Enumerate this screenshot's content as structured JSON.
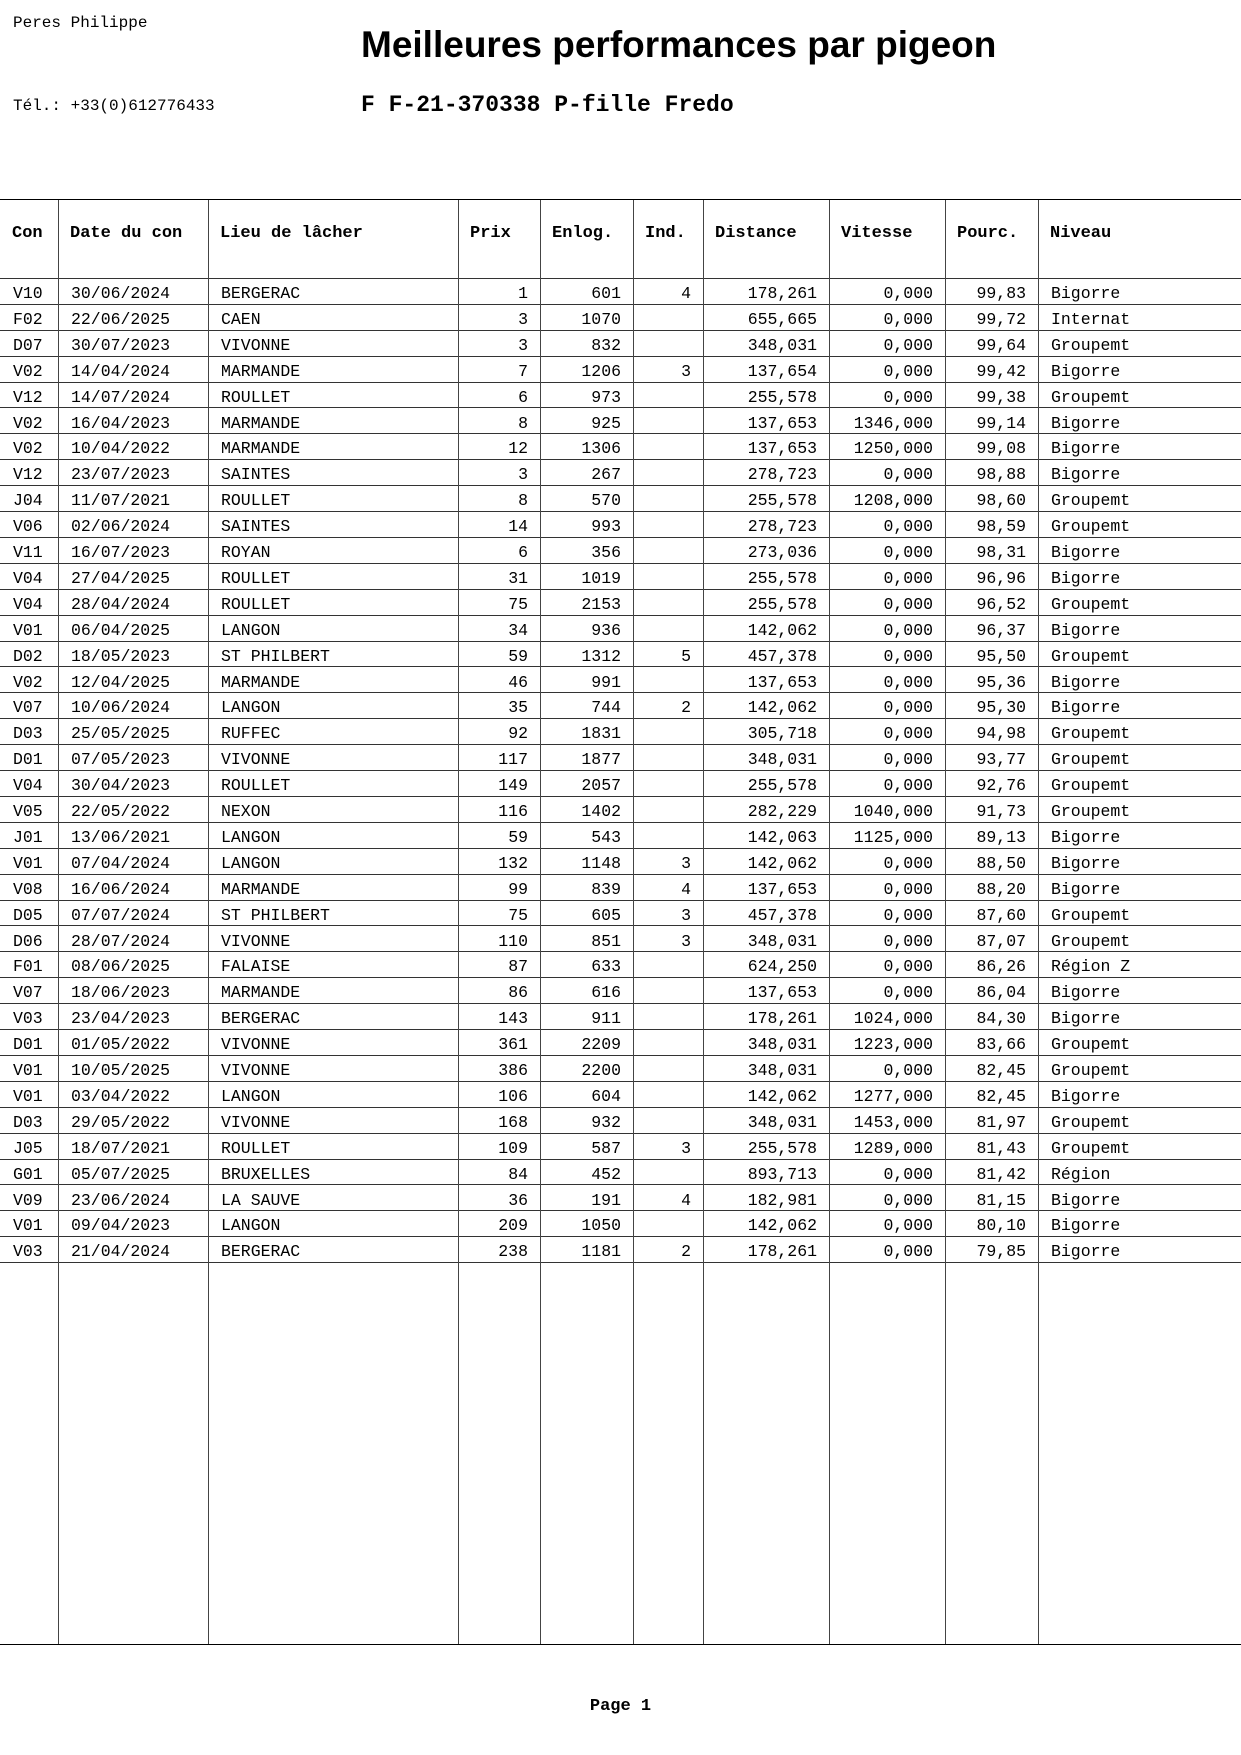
{
  "header": {
    "owner": "Peres Philippe",
    "phone": "Tél.: +33(0)612776433",
    "title": "Meilleures performances par pigeon",
    "pigeon": "F F-21-370338 P-fille Fredo"
  },
  "table": {
    "columns": [
      "Con",
      "Date du con",
      "Lieu de lâcher",
      "Prix",
      "Enlog.",
      "Ind.",
      "Distance",
      "Vitesse",
      "Pourc.",
      "Niveau"
    ],
    "rows": [
      [
        "V10",
        "30/06/2024",
        "BERGERAC",
        "1",
        "601",
        "4",
        "178,261",
        "0,000",
        "99,83",
        "Bigorre"
      ],
      [
        "F02",
        "22/06/2025",
        "CAEN",
        "3",
        "1070",
        "",
        "655,665",
        "0,000",
        "99,72",
        "Internat"
      ],
      [
        "D07",
        "30/07/2023",
        "VIVONNE",
        "3",
        "832",
        "",
        "348,031",
        "0,000",
        "99,64",
        "Groupemt"
      ],
      [
        "V02",
        "14/04/2024",
        "MARMANDE",
        "7",
        "1206",
        "3",
        "137,654",
        "0,000",
        "99,42",
        "Bigorre"
      ],
      [
        "V12",
        "14/07/2024",
        "ROULLET",
        "6",
        "973",
        "",
        "255,578",
        "0,000",
        "99,38",
        "Groupemt"
      ],
      [
        "V02",
        "16/04/2023",
        "MARMANDE",
        "8",
        "925",
        "",
        "137,653",
        "1346,000",
        "99,14",
        "Bigorre"
      ],
      [
        "V02",
        "10/04/2022",
        "MARMANDE",
        "12",
        "1306",
        "",
        "137,653",
        "1250,000",
        "99,08",
        "Bigorre"
      ],
      [
        "V12",
        "23/07/2023",
        "SAINTES",
        "3",
        "267",
        "",
        "278,723",
        "0,000",
        "98,88",
        "Bigorre"
      ],
      [
        "J04",
        "11/07/2021",
        "ROULLET",
        "8",
        "570",
        "",
        "255,578",
        "1208,000",
        "98,60",
        "Groupemt"
      ],
      [
        "V06",
        "02/06/2024",
        "SAINTES",
        "14",
        "993",
        "",
        "278,723",
        "0,000",
        "98,59",
        "Groupemt"
      ],
      [
        "V11",
        "16/07/2023",
        "ROYAN",
        "6",
        "356",
        "",
        "273,036",
        "0,000",
        "98,31",
        "Bigorre"
      ],
      [
        "V04",
        "27/04/2025",
        "ROULLET",
        "31",
        "1019",
        "",
        "255,578",
        "0,000",
        "96,96",
        "Bigorre"
      ],
      [
        "V04",
        "28/04/2024",
        "ROULLET",
        "75",
        "2153",
        "",
        "255,578",
        "0,000",
        "96,52",
        "Groupemt"
      ],
      [
        "V01",
        "06/04/2025",
        "LANGON",
        "34",
        "936",
        "",
        "142,062",
        "0,000",
        "96,37",
        "Bigorre"
      ],
      [
        "D02",
        "18/05/2023",
        "ST PHILBERT",
        "59",
        "1312",
        "5",
        "457,378",
        "0,000",
        "95,50",
        "Groupemt"
      ],
      [
        "V02",
        "12/04/2025",
        "MARMANDE",
        "46",
        "991",
        "",
        "137,653",
        "0,000",
        "95,36",
        "Bigorre"
      ],
      [
        "V07",
        "10/06/2024",
        "LANGON",
        "35",
        "744",
        "2",
        "142,062",
        "0,000",
        "95,30",
        "Bigorre"
      ],
      [
        "D03",
        "25/05/2025",
        "RUFFEC",
        "92",
        "1831",
        "",
        "305,718",
        "0,000",
        "94,98",
        "Groupemt"
      ],
      [
        "D01",
        "07/05/2023",
        "VIVONNE",
        "117",
        "1877",
        "",
        "348,031",
        "0,000",
        "93,77",
        "Groupemt"
      ],
      [
        "V04",
        "30/04/2023",
        "ROULLET",
        "149",
        "2057",
        "",
        "255,578",
        "0,000",
        "92,76",
        "Groupemt"
      ],
      [
        "V05",
        "22/05/2022",
        "NEXON",
        "116",
        "1402",
        "",
        "282,229",
        "1040,000",
        "91,73",
        "Groupemt"
      ],
      [
        "J01",
        "13/06/2021",
        "LANGON",
        "59",
        "543",
        "",
        "142,063",
        "1125,000",
        "89,13",
        "Bigorre"
      ],
      [
        "V01",
        "07/04/2024",
        "LANGON",
        "132",
        "1148",
        "3",
        "142,062",
        "0,000",
        "88,50",
        "Bigorre"
      ],
      [
        "V08",
        "16/06/2024",
        "MARMANDE",
        "99",
        "839",
        "4",
        "137,653",
        "0,000",
        "88,20",
        "Bigorre"
      ],
      [
        "D05",
        "07/07/2024",
        "ST PHILBERT",
        "75",
        "605",
        "3",
        "457,378",
        "0,000",
        "87,60",
        "Groupemt"
      ],
      [
        "D06",
        "28/07/2024",
        "VIVONNE",
        "110",
        "851",
        "3",
        "348,031",
        "0,000",
        "87,07",
        "Groupemt"
      ],
      [
        "F01",
        "08/06/2025",
        "FALAISE",
        "87",
        "633",
        "",
        "624,250",
        "0,000",
        "86,26",
        "Région Z"
      ],
      [
        "V07",
        "18/06/2023",
        "MARMANDE",
        "86",
        "616",
        "",
        "137,653",
        "0,000",
        "86,04",
        "Bigorre"
      ],
      [
        "V03",
        "23/04/2023",
        "BERGERAC",
        "143",
        "911",
        "",
        "178,261",
        "1024,000",
        "84,30",
        "Bigorre"
      ],
      [
        "D01",
        "01/05/2022",
        "VIVONNE",
        "361",
        "2209",
        "",
        "348,031",
        "1223,000",
        "83,66",
        "Groupemt"
      ],
      [
        "V01",
        "10/05/2025",
        "VIVONNE",
        "386",
        "2200",
        "",
        "348,031",
        "0,000",
        "82,45",
        "Groupemt"
      ],
      [
        "V01",
        "03/04/2022",
        "LANGON",
        "106",
        "604",
        "",
        "142,062",
        "1277,000",
        "82,45",
        "Bigorre"
      ],
      [
        "D03",
        "29/05/2022",
        "VIVONNE",
        "168",
        "932",
        "",
        "348,031",
        "1453,000",
        "81,97",
        "Groupemt"
      ],
      [
        "J05",
        "18/07/2021",
        "ROULLET",
        "109",
        "587",
        "3",
        "255,578",
        "1289,000",
        "81,43",
        "Groupemt"
      ],
      [
        "G01",
        "05/07/2025",
        "BRUXELLES",
        "84",
        "452",
        "",
        "893,713",
        "0,000",
        "81,42",
        "Région"
      ],
      [
        "V09",
        "23/06/2024",
        "LA SAUVE",
        "36",
        "191",
        "4",
        "182,981",
        "0,000",
        "81,15",
        "Bigorre"
      ],
      [
        "V01",
        "09/04/2023",
        "LANGON",
        "209",
        "1050",
        "",
        "142,062",
        "0,000",
        "80,10",
        "Bigorre"
      ],
      [
        "V03",
        "21/04/2024",
        "BERGERAC",
        "238",
        "1181",
        "2",
        "178,261",
        "0,000",
        "79,85",
        "Bigorre"
      ]
    ]
  },
  "footer": {
    "page": "Page 1"
  }
}
